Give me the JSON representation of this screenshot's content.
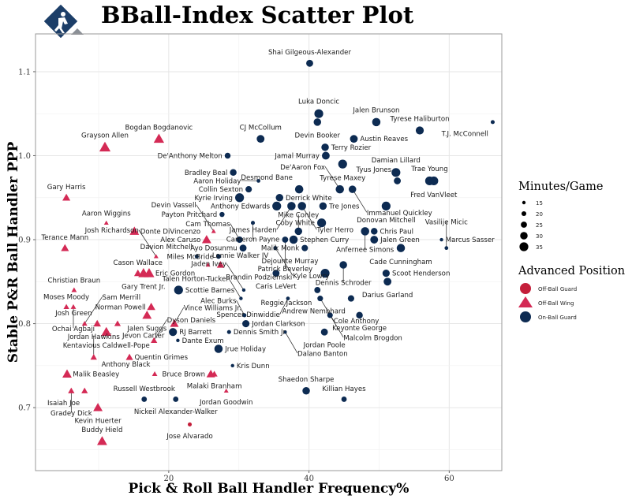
{
  "chart_data": {
    "type": "scatter",
    "title": "BBall-Index Scatter Plot",
    "xlabel": "Pick & Roll Ball Handler Frequency%",
    "ylabel": "Stable P&R Ball Handler PPP",
    "xlim": [
      1,
      67.5
    ],
    "ylim": [
      0.625,
      1.145
    ],
    "x_ticks": [
      20,
      40,
      60
    ],
    "y_ticks": [
      0.7,
      0.8,
      0.9,
      1.0,
      1.1
    ],
    "x_tick_labels": [
      "20",
      "40",
      "60"
    ],
    "y_tick_labels": [
      "0.7",
      "0.8",
      "0.9",
      "1.0",
      "1.1"
    ],
    "grid": true,
    "colors": {
      "Off-Ball Guard": "#c41e3a",
      "Off-Ball Wing": "#d42a55",
      "On-Ball Guard": "#0d2b52"
    },
    "legend_size": {
      "title": "Minutes/Game",
      "values": [
        15,
        20,
        25,
        30,
        35
      ],
      "labels": [
        "15",
        "20",
        "25",
        "30",
        "35"
      ],
      "placement": "right"
    },
    "legend_position": {
      "title": "Advanced Position",
      "items": [
        "Off-Ball  Guard",
        "Off-Ball  Wing",
        "On-Ball  Guard"
      ],
      "placement": "right"
    },
    "points": [
      {
        "name": "Shai Gilgeous-Alexander",
        "x": 40.1,
        "y": 1.11,
        "pos": "On-Ball Guard",
        "mpg": 28
      },
      {
        "name": "Luka Doncic",
        "x": 41.4,
        "y": 1.05,
        "pos": "On-Ball Guard",
        "mpg": 35
      },
      {
        "name": "Devin Booker",
        "x": 41.2,
        "y": 1.04,
        "pos": "On-Ball Guard",
        "mpg": 30
      },
      {
        "name": "Jalen Brunson",
        "x": 49.6,
        "y": 1.04,
        "pos": "On-Ball Guard",
        "mpg": 33
      },
      {
        "name": "T.J. McConnell",
        "x": 66.2,
        "y": 1.04,
        "pos": "On-Ball Guard",
        "mpg": 17
      },
      {
        "name": "Tyrese Haliburton",
        "x": 55.8,
        "y": 1.03,
        "pos": "On-Ball Guard",
        "mpg": 32
      },
      {
        "name": "Austin Reaves",
        "x": 46.4,
        "y": 1.02,
        "pos": "On-Ball Guard",
        "mpg": 31
      },
      {
        "name": "CJ McCollum",
        "x": 33.1,
        "y": 1.02,
        "pos": "On-Ball Guard",
        "mpg": 31
      },
      {
        "name": "Terry Rozier",
        "x": 42.3,
        "y": 1.01,
        "pos": "On-Ball Guard",
        "mpg": 30
      },
      {
        "name": "De'Anthony Melton",
        "x": 28.4,
        "y": 1.0,
        "pos": "On-Ball Guard",
        "mpg": 24
      },
      {
        "name": "Bradley Beal",
        "x": 29.2,
        "y": 0.98,
        "pos": "On-Ball Guard",
        "mpg": 27
      },
      {
        "name": "Jamal Murray",
        "x": 42.4,
        "y": 1.0,
        "pos": "On-Ball Guard",
        "mpg": 31
      },
      {
        "name": "Damian Lillard",
        "x": 52.4,
        "y": 0.98,
        "pos": "On-Ball Guard",
        "mpg": 35
      },
      {
        "name": "Tyrese Maxey",
        "x": 44.8,
        "y": 0.99,
        "pos": "On-Ball Guard",
        "mpg": 35
      },
      {
        "name": "Aaron Holiday",
        "x": 32.8,
        "y": 0.97,
        "pos": "On-Ball Guard",
        "mpg": 16
      },
      {
        "name": "Immanuel Quickley",
        "x": 46.2,
        "y": 0.96,
        "pos": "On-Ball Guard",
        "mpg": 30
      },
      {
        "name": "Trae Young",
        "x": 57.2,
        "y": 0.97,
        "pos": "On-Ball Guard",
        "mpg": 35
      },
      {
        "name": "Fred VanVleet",
        "x": 57.8,
        "y": 0.97,
        "pos": "On-Ball Guard",
        "mpg": 35
      },
      {
        "name": "Tyus Jones",
        "x": 52.6,
        "y": 0.97,
        "pos": "On-Ball Guard",
        "mpg": 28
      },
      {
        "name": "Collin Sexton",
        "x": 31.4,
        "y": 0.96,
        "pos": "On-Ball Guard",
        "mpg": 26
      },
      {
        "name": "Desmond Bane",
        "x": 38.6,
        "y": 0.96,
        "pos": "On-Ball Guard",
        "mpg": 33
      },
      {
        "name": "Kyrie Irving",
        "x": 30.1,
        "y": 0.95,
        "pos": "On-Ball Guard",
        "mpg": 35
      },
      {
        "name": "Derrick White",
        "x": 35.8,
        "y": 0.95,
        "pos": "On-Ball Guard",
        "mpg": 30
      },
      {
        "name": "James Harden",
        "x": 37.5,
        "y": 0.94,
        "pos": "On-Ball Guard",
        "mpg": 33
      },
      {
        "name": "De'Aaron Fox",
        "x": 44.4,
        "y": 0.96,
        "pos": "On-Ball Guard",
        "mpg": 33
      },
      {
        "name": "Donovan Mitchell",
        "x": 51.0,
        "y": 0.94,
        "pos": "On-Ball Guard",
        "mpg": 35
      },
      {
        "name": "Anthony Edwards",
        "x": 35.4,
        "y": 0.94,
        "pos": "On-Ball Guard",
        "mpg": 35
      },
      {
        "name": "Tyler Herro",
        "x": 39.0,
        "y": 0.94,
        "pos": "On-Ball Guard",
        "mpg": 33
      },
      {
        "name": "Tre Jones",
        "x": 42.0,
        "y": 0.94,
        "pos": "On-Ball Guard",
        "mpg": 30
      },
      {
        "name": "Payton Pritchard",
        "x": 27.6,
        "y": 0.93,
        "pos": "On-Ball Guard",
        "mpg": 21
      },
      {
        "name": "Cameron Payne",
        "x": 32.0,
        "y": 0.92,
        "pos": "On-Ball Guard",
        "mpg": 17
      },
      {
        "name": "Coby White",
        "x": 41.8,
        "y": 0.92,
        "pos": "On-Ball Guard",
        "mpg": 35
      },
      {
        "name": "Anfernee Simons",
        "x": 48.0,
        "y": 0.91,
        "pos": "On-Ball Guard",
        "mpg": 33
      },
      {
        "name": "Devin Vassell",
        "x": 26.4,
        "y": 0.91,
        "pos": "Off-Ball Wing",
        "mpg": 15
      },
      {
        "name": "Chris Paul",
        "x": 49.3,
        "y": 0.91,
        "pos": "On-Ball Guard",
        "mpg": 27
      },
      {
        "name": "Marcus Sasser",
        "x": 58.9,
        "y": 0.9,
        "pos": "On-Ball Guard",
        "mpg": 15
      },
      {
        "name": "Mike Conley",
        "x": 38.5,
        "y": 0.91,
        "pos": "On-Ball Guard",
        "mpg": 30
      },
      {
        "name": "Cam Thomas",
        "x": 30.1,
        "y": 0.9,
        "pos": "On-Ball Guard",
        "mpg": 26
      },
      {
        "name": "Jalen Green",
        "x": 49.3,
        "y": 0.9,
        "pos": "On-Ball Guard",
        "mpg": 31
      },
      {
        "name": "Cade Cunningham",
        "x": 53.1,
        "y": 0.89,
        "pos": "On-Ball Guard",
        "mpg": 33
      },
      {
        "name": "Vasilije Micic",
        "x": 59.6,
        "y": 0.89,
        "pos": "On-Ball Guard",
        "mpg": 16
      },
      {
        "name": "Davion Mitchell",
        "x": 24.0,
        "y": 0.88,
        "pos": "On-Ball Guard",
        "mpg": 17
      },
      {
        "name": "Alex Caruso",
        "x": 25.4,
        "y": 0.9,
        "pos": "Off-Ball Wing",
        "mpg": 28
      },
      {
        "name": "Ayo Dosunmu",
        "x": 30.6,
        "y": 0.89,
        "pos": "On-Ball Guard",
        "mpg": 28
      },
      {
        "name": "Kyle Lowry",
        "x": 35.2,
        "y": 0.89,
        "pos": "On-Ball Guard",
        "mpg": 17
      },
      {
        "name": "Patrick Beverley",
        "x": 36.6,
        "y": 0.9,
        "pos": "On-Ball Guard",
        "mpg": 25
      },
      {
        "name": "Stephen Curry",
        "x": 37.8,
        "y": 0.9,
        "pos": "On-Ball Guard",
        "mpg": 33
      },
      {
        "name": "Malik Monk",
        "x": 39.4,
        "y": 0.89,
        "pos": "On-Ball Guard",
        "mpg": 26
      },
      {
        "name": "Dennis Schroder",
        "x": 44.9,
        "y": 0.87,
        "pos": "On-Ball Guard",
        "mpg": 30
      },
      {
        "name": "Scoot Henderson",
        "x": 51.0,
        "y": 0.86,
        "pos": "On-Ball Guard",
        "mpg": 29
      },
      {
        "name": "Josh Richardson",
        "x": 18.2,
        "y": 0.88,
        "pos": "Off-Ball Wing",
        "mpg": 15
      },
      {
        "name": "Miles McBride",
        "x": 27.1,
        "y": 0.88,
        "pos": "On-Ball Guard",
        "mpg": 20
      },
      {
        "name": "Donte DiVincenzo",
        "x": 15.1,
        "y": 0.91,
        "pos": "Off-Ball Wing",
        "mpg": 28
      },
      {
        "name": "Aaron Wiggins",
        "x": 11.1,
        "y": 0.92,
        "pos": "Off-Ball Wing",
        "mpg": 15
      },
      {
        "name": "Gary Harris",
        "x": 5.4,
        "y": 0.95,
        "pos": "Off-Ball Wing",
        "mpg": 24
      },
      {
        "name": "Terance Mann",
        "x": 5.2,
        "y": 0.89,
        "pos": "Off-Ball Wing",
        "mpg": 24
      },
      {
        "name": "Cason Wallace",
        "x": 15.6,
        "y": 0.86,
        "pos": "Off-Ball Wing",
        "mpg": 23
      },
      {
        "name": "Gary Trent Jr.",
        "x": 16.4,
        "y": 0.86,
        "pos": "Off-Ball Wing",
        "mpg": 31
      },
      {
        "name": "Eric Gordon",
        "x": 17.2,
        "y": 0.86,
        "pos": "Off-Ball Wing",
        "mpg": 31
      },
      {
        "name": "Brandin Podziemski",
        "x": 27.4,
        "y": 0.87,
        "pos": "Off-Ball Wing",
        "mpg": 23
      },
      {
        "name": "Lonnie Walker IV",
        "x": 25.6,
        "y": 0.87,
        "pos": "Off-Ball Wing",
        "mpg": 15
      },
      {
        "name": "Caris LeVert",
        "x": 35.3,
        "y": 0.86,
        "pos": "On-Ball Guard",
        "mpg": 28
      },
      {
        "name": "Christian Braun",
        "x": 6.5,
        "y": 0.84,
        "pos": "Off-Ball Wing",
        "mpg": 17
      },
      {
        "name": "Scottie Barnes",
        "x": 21.4,
        "y": 0.84,
        "pos": "On-Ball Guard",
        "mpg": 35
      },
      {
        "name": "Jaden Ivey",
        "x": 30.7,
        "y": 0.84,
        "pos": "On-Ball Guard",
        "mpg": 15
      },
      {
        "name": "Spencer Dinwiddie",
        "x": 37.0,
        "y": 0.83,
        "pos": "On-Ball Guard",
        "mpg": 16
      },
      {
        "name": "Dejounte Murray",
        "x": 42.3,
        "y": 0.86,
        "pos": "On-Ball Guard",
        "mpg": 35
      },
      {
        "name": "Reggie Jackson",
        "x": 41.2,
        "y": 0.84,
        "pos": "On-Ball Guard",
        "mpg": 25
      },
      {
        "name": "Darius Garland",
        "x": 51.2,
        "y": 0.85,
        "pos": "On-Ball Guard",
        "mpg": 31
      },
      {
        "name": "Moses Moody",
        "x": 5.4,
        "y": 0.82,
        "pos": "Off-Ball Wing",
        "mpg": 18
      },
      {
        "name": "Norman Powell",
        "x": 17.5,
        "y": 0.82,
        "pos": "Off-Ball Wing",
        "mpg": 25
      },
      {
        "name": "Talen Horton-Tucker",
        "x": 30.3,
        "y": 0.83,
        "pos": "On-Ball Guard",
        "mpg": 15
      },
      {
        "name": "Andrew Nembhard",
        "x": 46.0,
        "y": 0.83,
        "pos": "On-Ball Guard",
        "mpg": 26
      },
      {
        "name": "Cole Anthony",
        "x": 41.6,
        "y": 0.83,
        "pos": "On-Ball Guard",
        "mpg": 23
      },
      {
        "name": "Ochai Agbaji",
        "x": 6.4,
        "y": 0.82,
        "pos": "Off-Ball Wing",
        "mpg": 17
      },
      {
        "name": "Jalen Suggs",
        "x": 16.9,
        "y": 0.81,
        "pos": "Off-Ball Wing",
        "mpg": 28
      },
      {
        "name": "Alec Burks",
        "x": 30.8,
        "y": 0.81,
        "pos": "On-Ball Guard",
        "mpg": 17
      },
      {
        "name": "Sam Merrill",
        "x": 8.0,
        "y": 0.8,
        "pos": "Off-Ball Wing",
        "mpg": 17
      },
      {
        "name": "Josh Green",
        "x": 9.8,
        "y": 0.8,
        "pos": "Off-Ball Wing",
        "mpg": 23
      },
      {
        "name": "Jevon Carter",
        "x": 12.7,
        "y": 0.8,
        "pos": "Off-Ball Wing",
        "mpg": 20
      },
      {
        "name": "Vince Williams Jr.",
        "x": 20.8,
        "y": 0.8,
        "pos": "Off-Ball Wing",
        "mpg": 26
      },
      {
        "name": "Jordan Clarkson",
        "x": 31.0,
        "y": 0.8,
        "pos": "On-Ball Guard",
        "mpg": 29
      },
      {
        "name": "Malcolm Brogdon",
        "x": 43.0,
        "y": 0.81,
        "pos": "On-Ball Guard",
        "mpg": 23
      },
      {
        "name": "Keyonte George",
        "x": 47.2,
        "y": 0.81,
        "pos": "On-Ball Guard",
        "mpg": 27
      },
      {
        "name": "Kentavious Caldwell-Pope",
        "x": 11.1,
        "y": 0.79,
        "pos": "Off-Ball Wing",
        "mpg": 30
      },
      {
        "name": "RJ Barrett",
        "x": 20.6,
        "y": 0.79,
        "pos": "On-Ball Guard",
        "mpg": 32
      },
      {
        "name": "Dennis Smith Jr.",
        "x": 28.6,
        "y": 0.79,
        "pos": "On-Ball Guard",
        "mpg": 17
      },
      {
        "name": "Dalano Banton",
        "x": 36.6,
        "y": 0.79,
        "pos": "On-Ball Guard",
        "mpg": 15
      },
      {
        "name": "Jordan Poole",
        "x": 42.2,
        "y": 0.79,
        "pos": "On-Ball Guard",
        "mpg": 28
      },
      {
        "name": "Dyson Daniels",
        "x": 17.9,
        "y": 0.78,
        "pos": "Off-Ball Wing",
        "mpg": 20
      },
      {
        "name": "Dante Exum",
        "x": 21.3,
        "y": 0.78,
        "pos": "On-Ball Guard",
        "mpg": 15
      },
      {
        "name": "Jrue Holiday",
        "x": 27.1,
        "y": 0.77,
        "pos": "On-Ball Guard",
        "mpg": 33
      },
      {
        "name": "Jordan Hawkins",
        "x": 9.3,
        "y": 0.76,
        "pos": "Off-Ball Wing",
        "mpg": 20
      },
      {
        "name": "Quentin Grimes",
        "x": 14.4,
        "y": 0.76,
        "pos": "Off-Ball Wing",
        "mpg": 22
      },
      {
        "name": "Kris Dunn",
        "x": 29.1,
        "y": 0.75,
        "pos": "On-Ball Guard",
        "mpg": 15
      },
      {
        "name": "Malik Beasley",
        "x": 5.5,
        "y": 0.74,
        "pos": "Off-Ball Wing",
        "mpg": 28
      },
      {
        "name": "Anthony Black",
        "x": 18.0,
        "y": 0.74,
        "pos": "Off-Ball Wing",
        "mpg": 17
      },
      {
        "name": "Malaki Branham",
        "x": 26.5,
        "y": 0.74,
        "pos": "Off-Ball Wing",
        "mpg": 20
      },
      {
        "name": "Bruce Brown",
        "x": 26.0,
        "y": 0.74,
        "pos": "Off-Ball Wing",
        "mpg": 26
      },
      {
        "name": "Isaiah Joe",
        "x": 8.0,
        "y": 0.72,
        "pos": "Off-Ball Wing",
        "mpg": 20
      },
      {
        "name": "Russell Westbrook",
        "x": 16.5,
        "y": 0.71,
        "pos": "On-Ball Guard",
        "mpg": 22
      },
      {
        "name": "Jordan Goodwin",
        "x": 28.2,
        "y": 0.72,
        "pos": "Off-Ball Wing",
        "mpg": 15
      },
      {
        "name": "Shaedon Sharpe",
        "x": 39.6,
        "y": 0.72,
        "pos": "On-Ball Guard",
        "mpg": 30
      },
      {
        "name": "Gradey Dick",
        "x": 6.1,
        "y": 0.72,
        "pos": "Off-Ball Wing",
        "mpg": 20
      },
      {
        "name": "Nickeil Alexander-Walker",
        "x": 21.0,
        "y": 0.71,
        "pos": "On-Ball Guard",
        "mpg": 22
      },
      {
        "name": "Killian Hayes",
        "x": 45.0,
        "y": 0.71,
        "pos": "On-Ball Guard",
        "mpg": 22
      },
      {
        "name": "Kevin Huerter",
        "x": 9.9,
        "y": 0.7,
        "pos": "Off-Ball Wing",
        "mpg": 28
      },
      {
        "name": "Jose Alvarado",
        "x": 23.0,
        "y": 0.68,
        "pos": "Off-Ball Guard",
        "mpg": 17
      },
      {
        "name": "Buddy Hield",
        "x": 10.5,
        "y": 0.66,
        "pos": "Off-Ball Wing",
        "mpg": 30
      },
      {
        "name": "Bogdan Bogdanovic",
        "x": 18.6,
        "y": 1.02,
        "pos": "Off-Ball Wing",
        "mpg": 31
      },
      {
        "name": "Grayson Allen",
        "x": 10.9,
        "y": 1.01,
        "pos": "Off-Ball Wing",
        "mpg": 33
      }
    ]
  }
}
